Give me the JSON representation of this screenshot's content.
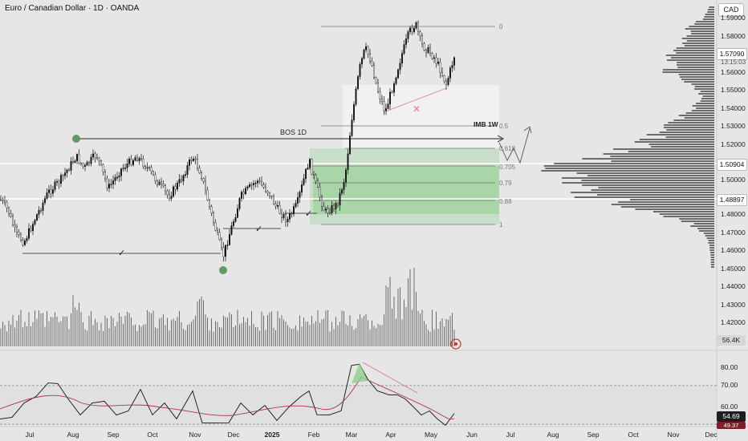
{
  "header": {
    "title": "Euro / Canadian Dollar · 1D · OANDA",
    "currency_button": "CAD"
  },
  "price_axis": [
    "1.59000",
    "1.58000",
    "1.57000",
    "1.56000",
    "1.55000",
    "1.54000",
    "1.53000",
    "1.52000",
    "1.51000",
    "1.50000",
    "1.48000",
    "1.47000",
    "1.46000",
    "1.45000",
    "1.44000",
    "1.43000",
    "1.42000"
  ],
  "price_tags": {
    "current": "1.57090",
    "countdown": "13:15:03",
    "line1": "1.50904",
    "line2": "1.48897",
    "volume": "56.4K"
  },
  "rsi_axis": [
    "80.00",
    "70.00",
    "60.00"
  ],
  "rsi_tags": {
    "value1": "54.69",
    "value2": "49.37"
  },
  "time_axis": [
    {
      "label": "Jul",
      "bold": false
    },
    {
      "label": "Aug",
      "bold": false
    },
    {
      "label": "Sep",
      "bold": false
    },
    {
      "label": "Oct",
      "bold": false
    },
    {
      "label": "Nov",
      "bold": false
    },
    {
      "label": "Dec",
      "bold": false
    },
    {
      "label": "2025",
      "bold": true
    },
    {
      "label": "Feb",
      "bold": false
    },
    {
      "label": "Mar",
      "bold": false
    },
    {
      "label": "Apr",
      "bold": false
    },
    {
      "label": "May",
      "bold": false
    },
    {
      "label": "Jun",
      "bold": false
    },
    {
      "label": "Jul",
      "bold": false
    },
    {
      "label": "Aug",
      "bold": false
    },
    {
      "label": "Sep",
      "bold": false
    },
    {
      "label": "Oct",
      "bold": false
    },
    {
      "label": "Nov",
      "bold": false
    },
    {
      "label": "Dec",
      "bold": false
    }
  ],
  "annotations": {
    "bos": "BOS 1D",
    "imb": "IMB 1W",
    "check": "✓",
    "cross": "✕"
  },
  "fib_levels": [
    "0",
    "0.5",
    "0.618",
    "0.705",
    "0.79",
    "0.88",
    "1"
  ],
  "colors": {
    "zone_green": "#8fce8f",
    "zone_grey": "#f2f2f2",
    "pivot_dot": "#5f9a66",
    "rsi_line": "#111111",
    "rsi_ma": "#b03050",
    "trend_pink": "#d87a9a"
  }
}
